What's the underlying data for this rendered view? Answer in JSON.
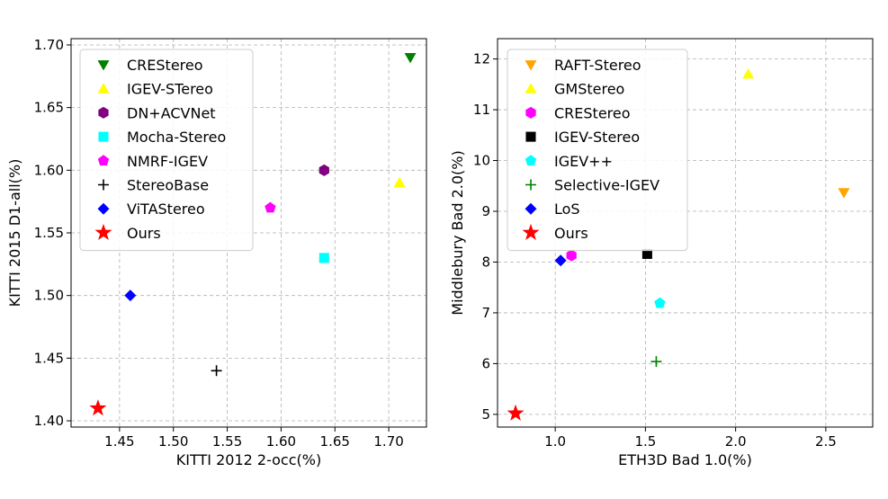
{
  "chart_data": [
    {
      "type": "scatter",
      "title": "",
      "xlabel": "KITTI 2012 2-occ(%)",
      "ylabel": "KITTI 2015 D1-all(%)",
      "xlim": [
        1.405,
        1.735
      ],
      "ylim": [
        1.395,
        1.705
      ],
      "xticks": [
        1.45,
        1.5,
        1.55,
        1.6,
        1.65,
        1.7
      ],
      "xtick_labels": [
        "1.45",
        "1.50",
        "1.55",
        "1.60",
        "1.65",
        "1.70"
      ],
      "yticks": [
        1.4,
        1.45,
        1.5,
        1.55,
        1.6,
        1.65,
        1.7
      ],
      "ytick_labels": [
        "1.40",
        "1.45",
        "1.50",
        "1.55",
        "1.60",
        "1.65",
        "1.70"
      ],
      "grid": true,
      "legend_position": "top-left",
      "series": [
        {
          "name": "CREStereo",
          "marker": "triangle-down",
          "color": "#008000",
          "x": 1.72,
          "y": 1.69
        },
        {
          "name": "IGEV-STereo",
          "marker": "triangle-up",
          "color": "#ffff00",
          "x": 1.71,
          "y": 1.59
        },
        {
          "name": "DN+ACVNet",
          "marker": "hexagon",
          "color": "#800080",
          "x": 1.64,
          "y": 1.6
        },
        {
          "name": "Mocha-Stereo",
          "marker": "square",
          "color": "#00ffff",
          "x": 1.64,
          "y": 1.53
        },
        {
          "name": "NMRF-IGEV",
          "marker": "pentagon",
          "color": "#ff00ff",
          "x": 1.59,
          "y": 1.57
        },
        {
          "name": "StereoBase",
          "marker": "plus",
          "color": "#000000",
          "x": 1.54,
          "y": 1.44
        },
        {
          "name": "ViTAStereo",
          "marker": "diamond",
          "color": "#0000ff",
          "x": 1.46,
          "y": 1.5
        },
        {
          "name": "Ours",
          "marker": "star",
          "color": "#ff0000",
          "x": 1.43,
          "y": 1.41
        }
      ]
    },
    {
      "type": "scatter",
      "title": "",
      "xlabel": "ETH3D Bad 1.0(%)",
      "ylabel": "Middlebury Bad 2.0(%)",
      "xlim": [
        0.68,
        2.76
      ],
      "ylim": [
        4.75,
        12.4
      ],
      "xticks": [
        1.0,
        1.5,
        2.0,
        2.5
      ],
      "xtick_labels": [
        "1.0",
        "1.5",
        "2.0",
        "2.5"
      ],
      "yticks": [
        5,
        6,
        7,
        8,
        9,
        10,
        11,
        12
      ],
      "ytick_labels": [
        "5",
        "6",
        "7",
        "8",
        "9",
        "10",
        "11",
        "12"
      ],
      "grid": true,
      "legend_position": "top-left",
      "series": [
        {
          "name": "RAFT-Stereo",
          "marker": "triangle-down",
          "color": "#ffa500",
          "x": 2.6,
          "y": 9.37
        },
        {
          "name": "GMStereo",
          "marker": "triangle-up",
          "color": "#ffff00",
          "x": 2.07,
          "y": 11.7
        },
        {
          "name": "CREStereo",
          "marker": "hexagon",
          "color": "#ff00ff",
          "x": 1.09,
          "y": 8.13
        },
        {
          "name": "IGEV-Stereo",
          "marker": "square",
          "color": "#000000",
          "x": 1.51,
          "y": 8.16
        },
        {
          "name": "IGEV++",
          "marker": "pentagon",
          "color": "#00ffff",
          "x": 1.58,
          "y": 7.19
        },
        {
          "name": "Selective-IGEV",
          "marker": "plus",
          "color": "#008000",
          "x": 1.56,
          "y": 6.04
        },
        {
          "name": "LoS",
          "marker": "diamond",
          "color": "#0000ff",
          "x": 1.03,
          "y": 8.03
        },
        {
          "name": "Ours",
          "marker": "star",
          "color": "#ff0000",
          "x": 0.78,
          "y": 5.02
        }
      ]
    }
  ]
}
